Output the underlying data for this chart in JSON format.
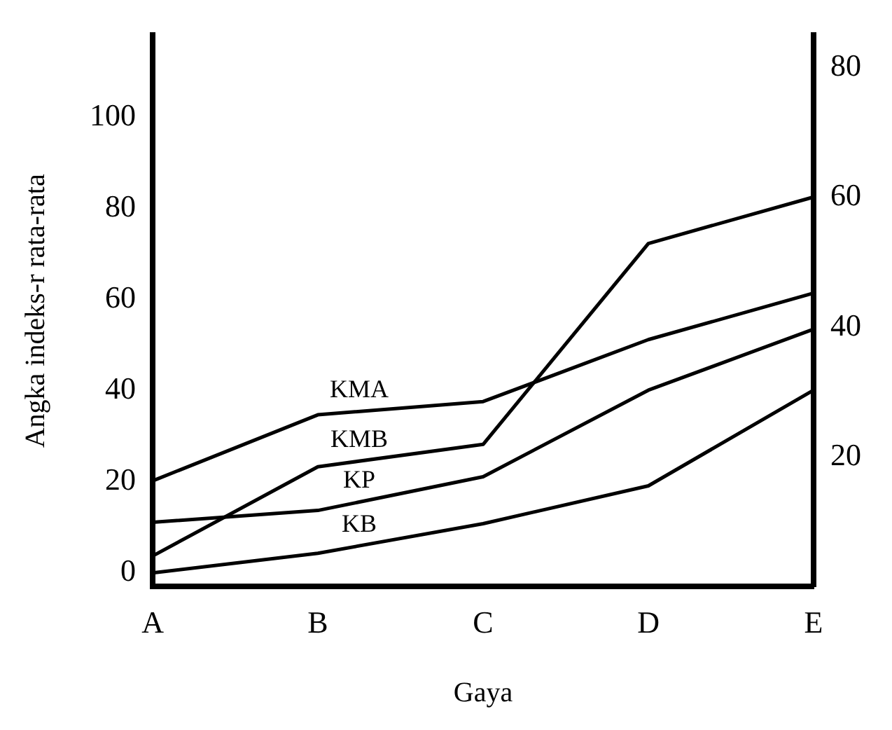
{
  "chart_data": {
    "type": "line",
    "xlabel": "Gaya",
    "ylabel": "Angka indeks-r rata-rata",
    "categories": [
      "A",
      "B",
      "C",
      "D",
      "E"
    ],
    "series": [
      {
        "name": "KMA",
        "color": "#000000",
        "values": [
          20.2,
          34.7,
          37.6,
          51.2,
          61.4
        ]
      },
      {
        "name": "KMB",
        "color": "#000000",
        "values": [
          3.7,
          23.3,
          28.2,
          72.3,
          82.5
        ]
      },
      {
        "name": "KP",
        "color": "#000000",
        "values": [
          11.1,
          13.7,
          21.1,
          40.1,
          53.5
        ]
      },
      {
        "name": "KB",
        "color": "#000000",
        "values": [
          0,
          4.3,
          10.8,
          19.1,
          40.1
        ]
      }
    ],
    "ylim": [
      -3,
      118
    ],
    "yticks": [
      0,
      20,
      40,
      60,
      80,
      100
    ],
    "y2lim": [
      0,
      85
    ],
    "y2ticks": [
      20,
      40,
      60,
      80
    ],
    "grid": false,
    "legend": false,
    "marker": "none",
    "line_style": "solid"
  }
}
